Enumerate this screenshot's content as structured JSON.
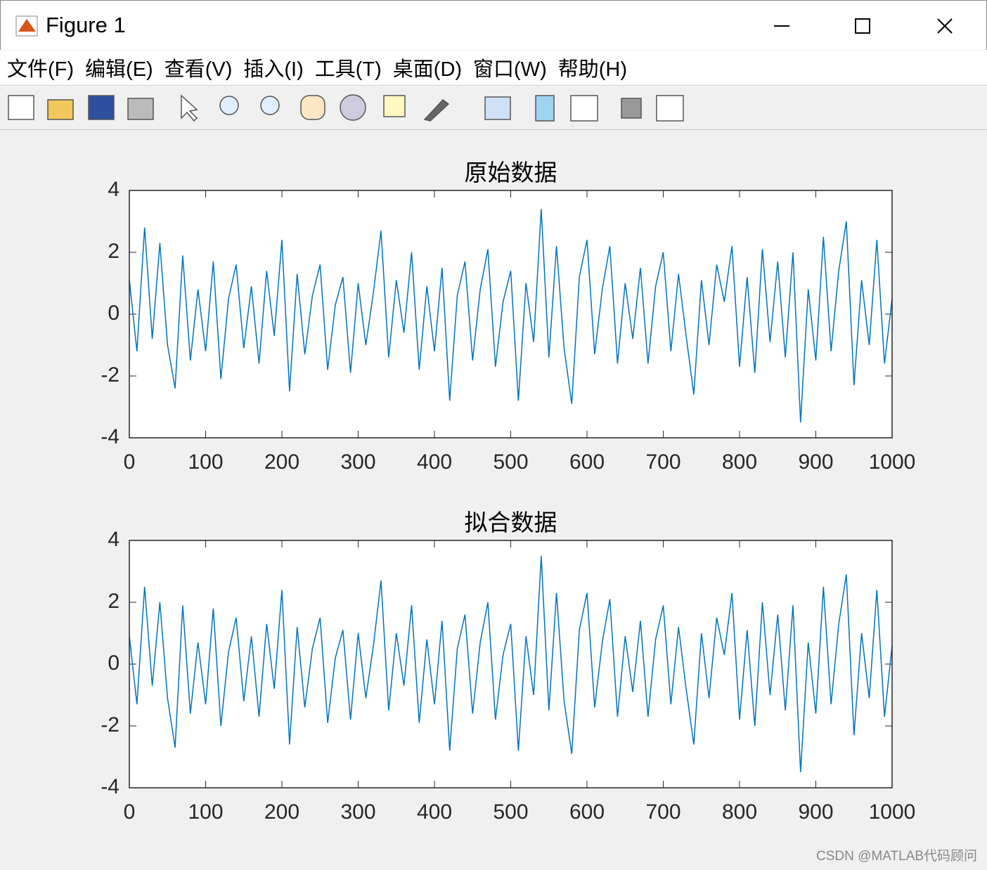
{
  "window": {
    "title": "Figure 1",
    "menu": [
      "文件(F)",
      "编辑(E)",
      "查看(V)",
      "插入(I)",
      "工具(T)",
      "桌面(D)",
      "窗口(W)",
      "帮助(H)"
    ]
  },
  "watermark": "CSDN @MATLAB代码顾问",
  "chart_data": [
    {
      "type": "line",
      "title": "原始数据",
      "x": [
        0,
        10,
        20,
        30,
        40,
        50,
        60,
        70,
        80,
        90,
        100,
        110,
        120,
        130,
        140,
        150,
        160,
        170,
        180,
        190,
        200,
        210,
        220,
        230,
        240,
        250,
        260,
        270,
        280,
        290,
        300,
        310,
        320,
        330,
        340,
        350,
        360,
        370,
        380,
        390,
        400,
        410,
        420,
        430,
        440,
        450,
        460,
        470,
        480,
        490,
        500,
        510,
        520,
        530,
        540,
        550,
        560,
        570,
        580,
        590,
        600,
        610,
        620,
        630,
        640,
        650,
        660,
        670,
        680,
        690,
        700,
        710,
        720,
        730,
        740,
        750,
        760,
        770,
        780,
        790,
        800,
        810,
        820,
        830,
        840,
        850,
        860,
        870,
        880,
        890,
        900,
        910,
        920,
        930,
        940,
        950,
        960,
        970,
        980,
        990,
        1000
      ],
      "series": [
        {
          "name": "原始数据",
          "color": "#0072bd",
          "values": [
            1.1,
            -1.2,
            2.8,
            -0.8,
            2.3,
            -1.0,
            -2.4,
            1.9,
            -1.5,
            0.8,
            -1.2,
            1.7,
            -2.1,
            0.5,
            1.6,
            -1.1,
            0.9,
            -1.6,
            1.4,
            -0.7,
            2.4,
            -2.5,
            1.3,
            -1.3,
            0.6,
            1.6,
            -1.8,
            0.3,
            1.2,
            -1.9,
            1.0,
            -1.0,
            0.7,
            2.7,
            -1.4,
            1.1,
            -0.6,
            2.0,
            -1.8,
            0.9,
            -1.2,
            1.5,
            -2.8,
            0.6,
            1.7,
            -1.5,
            0.8,
            2.1,
            -1.7,
            0.4,
            1.4,
            -2.8,
            1.0,
            -0.9,
            3.4,
            -1.4,
            2.2,
            -1.1,
            -2.9,
            1.2,
            2.4,
            -1.3,
            0.8,
            2.2,
            -1.6,
            1.0,
            -0.8,
            1.5,
            -1.6,
            0.9,
            2.0,
            -1.2,
            1.3,
            -0.7,
            -2.6,
            1.1,
            -1.0,
            1.6,
            0.4,
            2.2,
            -1.7,
            1.2,
            -1.9,
            2.1,
            -0.9,
            1.7,
            -1.4,
            2.0,
            -3.5,
            0.8,
            -1.5,
            2.5,
            -1.2,
            1.4,
            3.0,
            -2.3,
            1.1,
            -1.0,
            2.4,
            -1.6,
            0.5
          ]
        }
      ],
      "xlim": [
        0,
        1000
      ],
      "ylim": [
        -4,
        4
      ],
      "xticks": [
        0,
        100,
        200,
        300,
        400,
        500,
        600,
        700,
        800,
        900,
        1000
      ],
      "yticks": [
        -4,
        -2,
        0,
        2,
        4
      ]
    },
    {
      "type": "line",
      "title": "拟合数据",
      "x": [
        0,
        10,
        20,
        30,
        40,
        50,
        60,
        70,
        80,
        90,
        100,
        110,
        120,
        130,
        140,
        150,
        160,
        170,
        180,
        190,
        200,
        210,
        220,
        230,
        240,
        250,
        260,
        270,
        280,
        290,
        300,
        310,
        320,
        330,
        340,
        350,
        360,
        370,
        380,
        390,
        400,
        410,
        420,
        430,
        440,
        450,
        460,
        470,
        480,
        490,
        500,
        510,
        520,
        530,
        540,
        550,
        560,
        570,
        580,
        590,
        600,
        610,
        620,
        630,
        640,
        650,
        660,
        670,
        680,
        690,
        700,
        710,
        720,
        730,
        740,
        750,
        760,
        770,
        780,
        790,
        800,
        810,
        820,
        830,
        840,
        850,
        860,
        870,
        880,
        890,
        900,
        910,
        920,
        930,
        940,
        950,
        960,
        970,
        980,
        990,
        1000
      ],
      "series": [
        {
          "name": "拟合数据",
          "color": "#0072bd",
          "values": [
            0.9,
            -1.3,
            2.5,
            -0.7,
            2.0,
            -1.1,
            -2.7,
            1.9,
            -1.6,
            0.7,
            -1.3,
            1.8,
            -2.0,
            0.4,
            1.5,
            -1.2,
            0.9,
            -1.7,
            1.3,
            -0.8,
            2.4,
            -2.6,
            1.2,
            -1.4,
            0.5,
            1.5,
            -1.9,
            0.2,
            1.1,
            -1.8,
            1.0,
            -1.1,
            0.6,
            2.7,
            -1.5,
            1.0,
            -0.7,
            1.9,
            -1.9,
            0.8,
            -1.3,
            1.4,
            -2.8,
            0.5,
            1.6,
            -1.6,
            0.7,
            2.0,
            -1.8,
            0.3,
            1.3,
            -2.8,
            0.9,
            -1.0,
            3.5,
            -1.5,
            2.3,
            -1.2,
            -2.9,
            1.1,
            2.3,
            -1.4,
            0.7,
            2.1,
            -1.7,
            0.9,
            -0.9,
            1.4,
            -1.7,
            0.8,
            1.9,
            -1.3,
            1.2,
            -0.8,
            -2.6,
            1.0,
            -1.1,
            1.5,
            0.3,
            2.3,
            -1.8,
            1.1,
            -2.0,
            2.0,
            -1.0,
            1.6,
            -1.5,
            1.9,
            -3.5,
            0.7,
            -1.6,
            2.5,
            -1.3,
            1.3,
            2.9,
            -2.3,
            1.0,
            -1.1,
            2.4,
            -1.7,
            0.6
          ]
        }
      ],
      "xlim": [
        0,
        1000
      ],
      "ylim": [
        -4,
        4
      ],
      "xticks": [
        0,
        100,
        200,
        300,
        400,
        500,
        600,
        700,
        800,
        900,
        1000
      ],
      "yticks": [
        -4,
        -2,
        0,
        2,
        4
      ]
    }
  ]
}
